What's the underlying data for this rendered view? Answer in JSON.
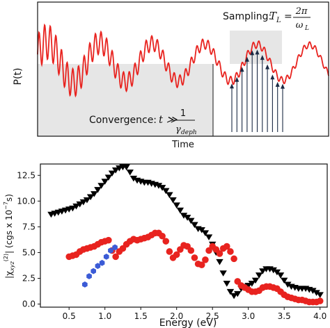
{
  "chart_data": [
    {
      "type": "line",
      "ylabel": "P(t)",
      "xlabel": "Time",
      "annotations": {
        "sampling_label": "Sampling:",
        "sampling_formula_lhs": "T",
        "sampling_formula_sub": "L",
        "sampling_num": "2π",
        "sampling_den": "ω",
        "sampling_den_sub": "L",
        "convergence_label": "Convergence:",
        "convergence_lhs": "t ≫",
        "convergence_num": "1",
        "convergence_den": "γ",
        "convergence_den_sub": "deph"
      },
      "series": [
        {
          "color": "#e8231f",
          "description_hidden": true
        }
      ],
      "sampling_arrows": 11,
      "colors": {
        "signal": "#e8231f",
        "shade": "#e6e6e6",
        "arrows": "#1a2a44"
      }
    },
    {
      "type": "scatter",
      "xlabel": "Energy (eV)",
      "ylabel": "|χxyz(2)| (cgs x 10^-7 s)",
      "ylabel_parts": {
        "abs_open": "|χ",
        "sub": "xyz",
        "sup": "(2)",
        "abs_close": "| (cgs x 10",
        "exp": "−7",
        "unit_close": "s)"
      },
      "xlim": [
        0.1,
        4.1
      ],
      "ylim": [
        -0.3,
        13.6
      ],
      "xticks": [
        "0.5",
        "1.0",
        "1.5",
        "2.0",
        "2.5",
        "3.0",
        "3.5",
        "4.0"
      ],
      "yticks": [
        "0.0",
        "2.5",
        "5.0",
        "7.5",
        "10.0",
        "12.5"
      ],
      "series": [
        {
          "marker": "triangle-down",
          "color": "#000000",
          "x": [
            0.25,
            0.3,
            0.35,
            0.4,
            0.45,
            0.5,
            0.55,
            0.6,
            0.65,
            0.7,
            0.75,
            0.8,
            0.85,
            0.9,
            0.95,
            1.0,
            1.05,
            1.1,
            1.15,
            1.2,
            1.25,
            1.3,
            1.35,
            1.4,
            1.45,
            1.5,
            1.55,
            1.6,
            1.65,
            1.7,
            1.75,
            1.8,
            1.85,
            1.9,
            1.95,
            2.0,
            2.05,
            2.1,
            2.15,
            2.2,
            2.25,
            2.3,
            2.35,
            2.4,
            2.45,
            2.5,
            2.55,
            2.6,
            2.65,
            2.7,
            2.75,
            2.8,
            2.85,
            2.9,
            2.95,
            3.0,
            3.05,
            3.1,
            3.15,
            3.2,
            3.25,
            3.3,
            3.35,
            3.4,
            3.45,
            3.5,
            3.55,
            3.6,
            3.65,
            3.7,
            3.75,
            3.8,
            3.85,
            3.9,
            3.95,
            4.0
          ],
          "y": [
            8.7,
            8.8,
            8.9,
            9.0,
            9.1,
            9.2,
            9.3,
            9.5,
            9.7,
            9.9,
            10.1,
            10.4,
            10.7,
            11.1,
            11.5,
            11.9,
            12.3,
            12.7,
            13.0,
            13.2,
            13.3,
            13.3,
            12.8,
            12.2,
            12.0,
            11.9,
            11.8,
            11.8,
            11.7,
            11.6,
            11.5,
            11.3,
            11.0,
            10.6,
            10.1,
            9.6,
            9.1,
            8.6,
            8.4,
            8.1,
            7.7,
            7.3,
            7.2,
            6.9,
            6.5,
            5.8,
            5.0,
            4.1,
            3.0,
            2.0,
            1.2,
            0.8,
            1.0,
            1.5,
            1.7,
            1.8,
            2.0,
            2.3,
            2.8,
            3.2,
            3.4,
            3.4,
            3.3,
            3.1,
            2.8,
            2.3,
            1.9,
            1.7,
            1.6,
            1.5,
            1.5,
            1.5,
            1.4,
            1.3,
            1.1,
            0.9
          ]
        },
        {
          "marker": "circle",
          "color": "#e8231f",
          "x": [
            0.5,
            0.55,
            0.6,
            0.65,
            0.7,
            0.75,
            0.8,
            0.85,
            0.9,
            0.95,
            1.0,
            1.05,
            1.1,
            1.15,
            1.2,
            1.25,
            1.3,
            1.35,
            1.4,
            1.45,
            1.5,
            1.55,
            1.6,
            1.65,
            1.7,
            1.75,
            1.8,
            1.85,
            1.9,
            1.95,
            2.0,
            2.05,
            2.1,
            2.15,
            2.2,
            2.25,
            2.3,
            2.35,
            2.4,
            2.45,
            2.5,
            2.55,
            2.6,
            2.65,
            2.7,
            2.75,
            2.8,
            2.85,
            2.9,
            2.95,
            3.0,
            3.05,
            3.1,
            3.15,
            3.2,
            3.25,
            3.3,
            3.35,
            3.4,
            3.45,
            3.5,
            3.55,
            3.6,
            3.65,
            3.7,
            3.75,
            3.8,
            3.85,
            3.9,
            3.95,
            4.0
          ],
          "y": [
            4.6,
            4.7,
            4.8,
            5.1,
            5.3,
            5.4,
            5.5,
            5.6,
            5.8,
            6.0,
            6.1,
            6.2,
            5.2,
            4.6,
            5.1,
            5.4,
            5.8,
            6.1,
            6.3,
            6.2,
            6.3,
            6.4,
            6.5,
            6.7,
            6.9,
            6.9,
            6.6,
            6.1,
            5.1,
            4.5,
            4.8,
            5.3,
            5.7,
            5.6,
            5.2,
            4.5,
            3.9,
            3.8,
            4.3,
            5.2,
            5.6,
            5.3,
            4.9,
            5.4,
            5.6,
            5.1,
            4.4,
            2.2,
            1.8,
            1.6,
            1.4,
            1.2,
            1.2,
            1.3,
            1.6,
            1.7,
            1.7,
            1.6,
            1.5,
            1.2,
            0.9,
            0.7,
            0.6,
            0.5,
            0.4,
            0.4,
            0.3,
            0.2,
            0.2,
            0.2,
            0.3
          ]
        },
        {
          "marker": "hexagon",
          "color": "#3b5bd6",
          "x": [
            0.72,
            0.78,
            0.84,
            0.9,
            0.96,
            1.02,
            1.08,
            1.14
          ],
          "y": [
            1.9,
            2.7,
            3.2,
            3.7,
            4.0,
            4.6,
            5.2,
            5.5
          ]
        }
      ]
    }
  ]
}
